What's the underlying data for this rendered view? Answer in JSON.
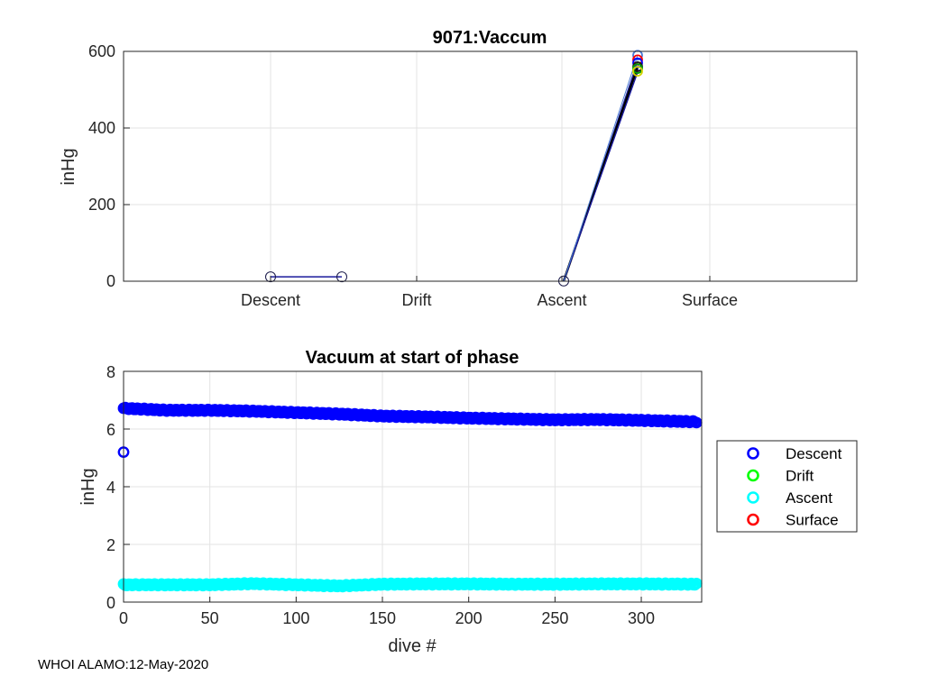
{
  "footer": "WHOI ALAMO:12-May-2020",
  "chart_data": [
    {
      "type": "line",
      "title": "9071:Vaccum",
      "ylabel": "inHg",
      "xlabel": "",
      "categories": [
        "Descent",
        "Drift",
        "Ascent",
        "Surface"
      ],
      "ylim": [
        0,
        600
      ],
      "yticks": [
        "0",
        "200",
        "400",
        "600"
      ],
      "grid": true,
      "colors": {
        "descent_profile": "#1a1a9c",
        "ascent_profile": "#000000"
      },
      "descent_profile": {
        "x": [
          0.0,
          0.5
        ],
        "y": [
          6.7,
          6.7
        ]
      },
      "ascent_profile": {
        "x": [
          2.0,
          2.5
        ],
        "y": [
          0.6,
          560
        ]
      },
      "surface_markers": [
        {
          "y": 590,
          "color": "#4a7bd4"
        },
        {
          "y": 578,
          "color": "#ff0000"
        },
        {
          "y": 570,
          "color": "#0000ff"
        },
        {
          "y": 560,
          "color": "#1a1a1a"
        },
        {
          "y": 555,
          "color": "#00a000"
        },
        {
          "y": 548,
          "color": "#d4d400"
        }
      ]
    },
    {
      "type": "scatter",
      "title": "Vacuum at start of phase",
      "xlabel": "dive #",
      "ylabel": "inHg",
      "xlim": [
        0,
        335
      ],
      "ylim": [
        0,
        8
      ],
      "xticks": [
        "0",
        "50",
        "100",
        "150",
        "200",
        "250",
        "300"
      ],
      "yticks": [
        "0",
        "2",
        "4",
        "6",
        "8"
      ],
      "grid": true,
      "legend_position": "right",
      "series": [
        {
          "name": "Descent",
          "color": "#0000ff",
          "outlier": {
            "x": 0,
            "y": 5.2
          },
          "x": [
            0,
            25,
            50,
            75,
            100,
            125,
            150,
            175,
            200,
            225,
            250,
            275,
            300,
            332
          ],
          "y": [
            6.72,
            6.65,
            6.65,
            6.62,
            6.57,
            6.52,
            6.45,
            6.42,
            6.38,
            6.35,
            6.32,
            6.33,
            6.3,
            6.25
          ]
        },
        {
          "name": "Drift",
          "color": "#00ff00",
          "x": [],
          "y": []
        },
        {
          "name": "Ascent",
          "color": "#00ffff",
          "x": [
            0,
            25,
            50,
            75,
            100,
            125,
            150,
            175,
            200,
            225,
            250,
            275,
            300,
            332
          ],
          "y": [
            0.6,
            0.6,
            0.6,
            0.64,
            0.6,
            0.56,
            0.62,
            0.63,
            0.63,
            0.62,
            0.62,
            0.63,
            0.63,
            0.62
          ]
        },
        {
          "name": "Surface",
          "color": "#ff0000",
          "x": [],
          "y": []
        }
      ]
    }
  ]
}
